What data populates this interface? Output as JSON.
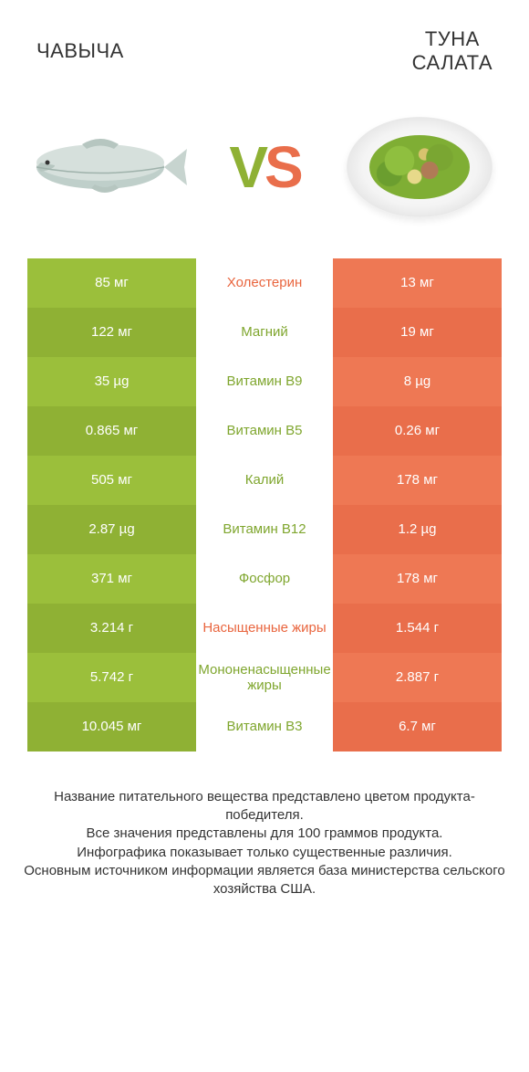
{
  "colors": {
    "left_a": "#9bbf3b",
    "left_b": "#8fb134",
    "right_a": "#ee7854",
    "right_b": "#e96e4b",
    "mid_text_green": "#7fa62e",
    "mid_text_orange": "#e9653e",
    "vs_v": "#8fb134",
    "vs_s": "#e96e4b"
  },
  "header": {
    "left": "ЧАВЫЧА",
    "right": "ТУНА\nСАЛАТА"
  },
  "vs": {
    "v": "V",
    "s": "S"
  },
  "rows": [
    {
      "left": "85 мг",
      "mid": "Холестерин",
      "right": "13 мг",
      "winner": "right"
    },
    {
      "left": "122 мг",
      "mid": "Магний",
      "right": "19 мг",
      "winner": "left"
    },
    {
      "left": "35 µg",
      "mid": "Витамин B9",
      "right": "8 µg",
      "winner": "left"
    },
    {
      "left": "0.865 мг",
      "mid": "Витамин B5",
      "right": "0.26 мг",
      "winner": "left"
    },
    {
      "left": "505 мг",
      "mid": "Калий",
      "right": "178 мг",
      "winner": "left"
    },
    {
      "left": "2.87 µg",
      "mid": "Витамин B12",
      "right": "1.2 µg",
      "winner": "left"
    },
    {
      "left": "371 мг",
      "mid": "Фосфор",
      "right": "178 мг",
      "winner": "left"
    },
    {
      "left": "3.214 г",
      "mid": "Насыщенные жиры",
      "right": "1.544 г",
      "winner": "right"
    },
    {
      "left": "5.742 г",
      "mid": "Мононенасыщенные жиры",
      "right": "2.887 г",
      "winner": "left"
    },
    {
      "left": "10.045 мг",
      "mid": "Витамин B3",
      "right": "6.7 мг",
      "winner": "left"
    }
  ],
  "footnote": {
    "l1": "Название питательного вещества представлено цветом продукта-победителя.",
    "l2": "Все значения представлены для 100 граммов продукта.",
    "l3": "Инфографика показывает только существенные различия.",
    "l4": "Основным источником информации является база министерства сельского хозяйства США."
  }
}
